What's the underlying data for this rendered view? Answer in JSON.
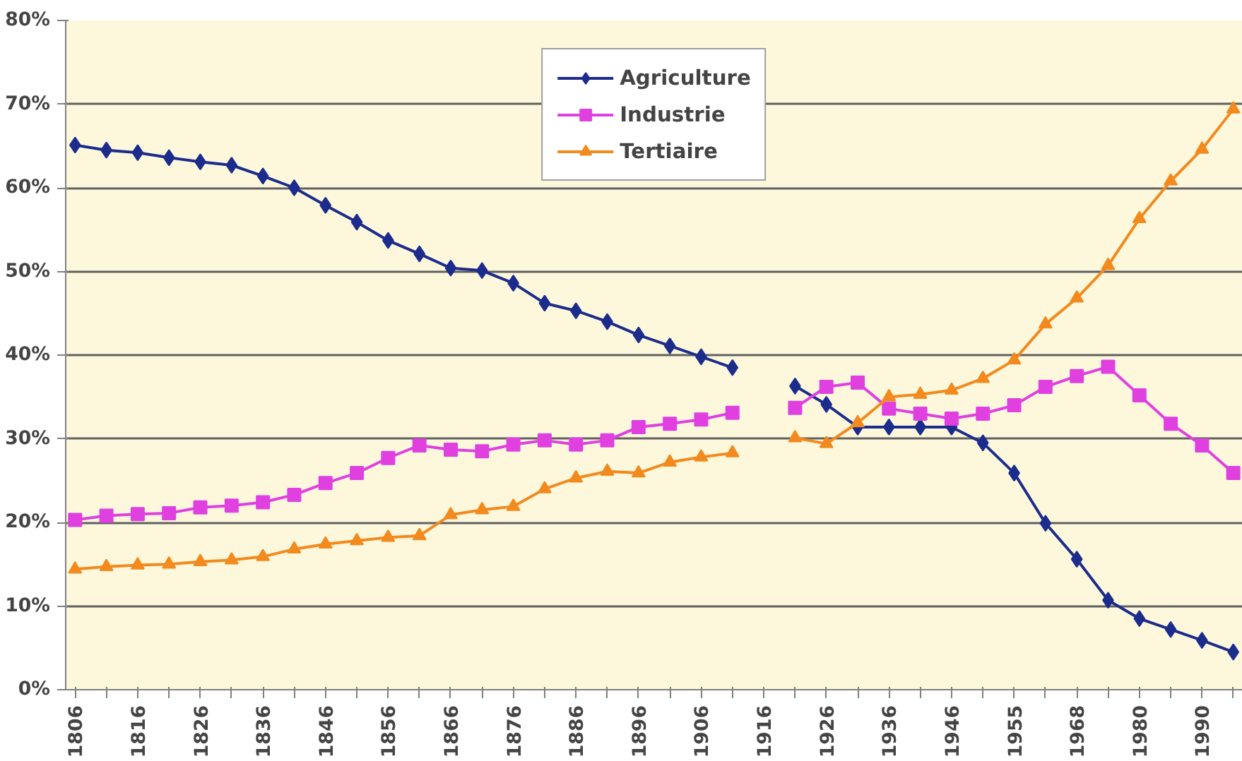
{
  "chart_data": {
    "type": "line",
    "categories": [
      "1806",
      null,
      "1816",
      null,
      "1826",
      null,
      "1836",
      null,
      "1846",
      null,
      "1856",
      null,
      "1866",
      null,
      "1876",
      null,
      "1886",
      null,
      "1896",
      null,
      "1906",
      null,
      "1916",
      null,
      "1926",
      null,
      "1936",
      null,
      "1946",
      null,
      "1955",
      null,
      "1968",
      null,
      "1980",
      null,
      "1990",
      null
    ],
    "series": [
      {
        "name": "Agriculture",
        "color": "#1c2c8c",
        "marker": "diamond",
        "values": [
          65.1,
          64.5,
          64.2,
          63.6,
          63.1,
          62.7,
          61.4,
          60.0,
          57.9,
          55.9,
          53.7,
          52.1,
          50.4,
          50.1,
          48.6,
          46.2,
          45.3,
          44.0,
          42.4,
          41.1,
          39.8,
          38.5,
          null,
          36.3,
          34.1,
          31.4,
          31.4,
          31.4,
          31.4,
          29.5,
          25.9,
          19.9,
          15.6,
          10.7,
          8.5,
          7.2,
          5.9,
          4.5
        ]
      },
      {
        "name": "Industrie",
        "color": "#e040e0",
        "marker": "square",
        "values": [
          20.3,
          20.8,
          21.0,
          21.1,
          21.8,
          22.0,
          22.4,
          23.3,
          24.7,
          25.9,
          27.7,
          29.2,
          28.7,
          28.5,
          29.3,
          29.8,
          29.3,
          29.8,
          31.4,
          31.8,
          32.3,
          33.1,
          null,
          33.7,
          36.2,
          36.7,
          33.6,
          33.0,
          32.4,
          33.0,
          34.0,
          36.2,
          37.5,
          38.6,
          35.2,
          31.8,
          29.2,
          25.9
        ]
      },
      {
        "name": "Tertiaire",
        "color": "#f28a1e",
        "marker": "triangle",
        "values": [
          14.4,
          14.7,
          14.9,
          15.0,
          15.3,
          15.5,
          15.9,
          16.8,
          17.4,
          17.8,
          18.2,
          18.4,
          20.9,
          21.5,
          21.9,
          24.0,
          25.3,
          26.1,
          25.9,
          27.2,
          27.8,
          28.3,
          null,
          30.1,
          29.4,
          31.9,
          35.0,
          35.3,
          35.8,
          37.2,
          39.4,
          43.7,
          46.8,
          50.7,
          56.3,
          60.8,
          64.6,
          69.4
        ]
      }
    ],
    "ylim": [
      0,
      80
    ],
    "yticks": [
      {
        "value": 0,
        "label": "0%"
      },
      {
        "value": 10,
        "label": "10%"
      },
      {
        "value": 20,
        "label": "20%"
      },
      {
        "value": 30,
        "label": "30%"
      },
      {
        "value": 40,
        "label": "40%"
      },
      {
        "value": 50,
        "label": "50%"
      },
      {
        "value": 60,
        "label": "60%"
      },
      {
        "value": 70,
        "label": "70%"
      },
      {
        "value": 80,
        "label": "80%"
      }
    ],
    "grid": "y",
    "legend": "top",
    "line_style": "solid"
  }
}
